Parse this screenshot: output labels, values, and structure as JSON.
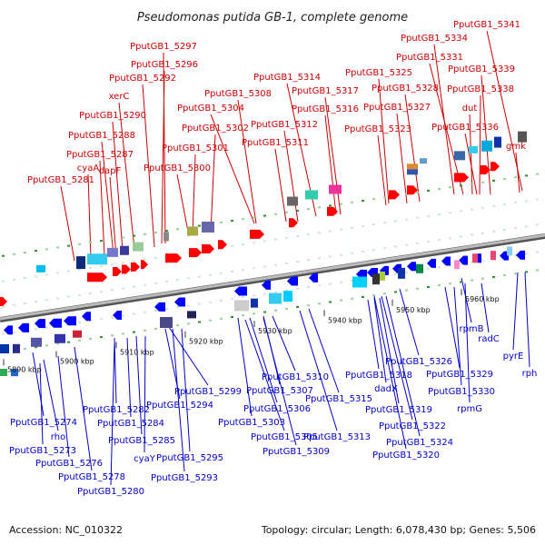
{
  "title": "Pseudomonas putida GB-1, complete genome",
  "footer": {
    "accession": "Accession: NC_010322",
    "summary": "Topology: circular; Length: 6,078,430 bp; Genes: 5,506"
  },
  "colors": {
    "forward_label": "#cc0000",
    "reverse_label": "#0000cc",
    "forward_gene": "#ff0000",
    "reverse_gene": "#0000ff",
    "backbone": "#888888",
    "tick_dot": "#2e8b2e"
  },
  "scale_ticks": [
    "5890 kbp",
    "5900 kbp",
    "5910 kbp",
    "5920 kbp",
    "5930 kbp",
    "5940 kbp",
    "5950 kbp",
    "5960 kbp"
  ],
  "forward_labels": [
    "PputGB1_5297",
    "PputGB1_5296",
    "PputGB1_5292",
    "xerC",
    "PputGB1_5290",
    "PputGB1_5288",
    "PputGB1_5287",
    "cyaA",
    "dapF",
    "PputGB1_5281",
    "PputGB1_5302",
    "PputGB1_5301",
    "PputGB1_5300",
    "PputGB1_5304",
    "PputGB1_5308",
    "PputGB1_5314",
    "PputGB1_5312",
    "PputGB1_5311",
    "PputGB1_5317",
    "PputGB1_5316",
    "PputGB1_5325",
    "PputGB1_5328",
    "PputGB1_5327",
    "PputGB1_5323",
    "PputGB1_5334",
    "PputGB1_5331",
    "PputGB1_5341",
    "PputGB1_5339",
    "PputGB1_5338",
    "dut",
    "PputGB1_5336",
    "gmk"
  ],
  "reverse_labels": [
    "PputGB1_5274",
    "rho",
    "PputGB1_5273",
    "PputGB1_5276",
    "PputGB1_5278",
    "PputGB1_5280",
    "PputGB1_5282",
    "PputGB1_5284",
    "PputGB1_5285",
    "cyaY",
    "PputGB1_5299",
    "PputGB1_5294",
    "PputGB1_5295",
    "PputGB1_5293",
    "PputGB1_5310",
    "PputGB1_5307",
    "PputGB1_5306",
    "PputGB1_5303",
    "PputGB1_5305",
    "PputGB1_5309",
    "PputGB1_5313",
    "PputGB1_5315",
    "PputGB1_5318",
    "dadX",
    "PputGB1_5319",
    "PputGB1_5322",
    "PputGB1_5324",
    "PputGB1_5320",
    "PputGB1_5326",
    "rpmB",
    "PputGB1_5329",
    "PputGB1_5330",
    "rpmG",
    "radC",
    "pyrE",
    "rph"
  ]
}
